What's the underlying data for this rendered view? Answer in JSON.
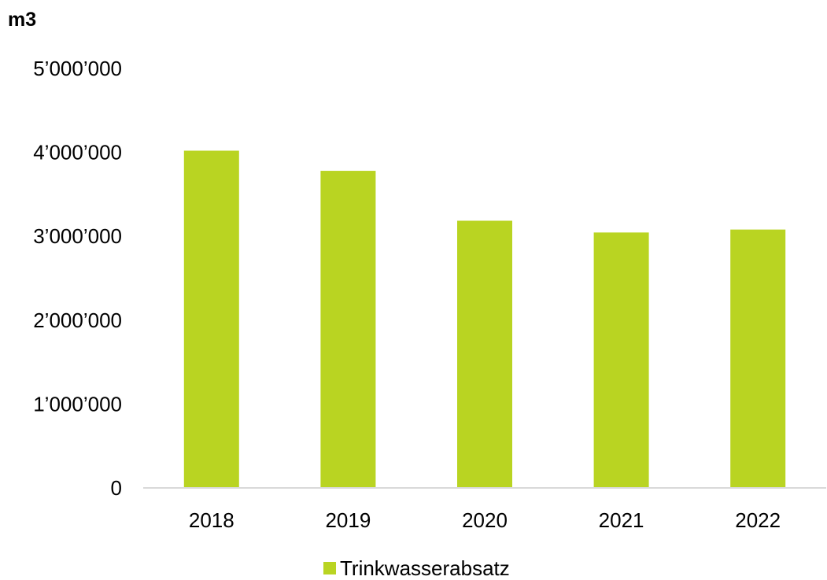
{
  "chart_data": {
    "type": "bar",
    "unit_label": "m3",
    "categories": [
      "2018",
      "2019",
      "2020",
      "2021",
      "2022"
    ],
    "series": [
      {
        "name": "Trinkwasserabsatz",
        "values": [
          4020000,
          3780000,
          3185000,
          3045000,
          3080000
        ]
      }
    ],
    "ylim": [
      0,
      5000000
    ],
    "y_ticks": [
      0,
      1000000,
      2000000,
      3000000,
      4000000,
      5000000
    ],
    "y_tick_labels": [
      "0",
      "1’000’000",
      "2’000’000",
      "3’000’000",
      "4’000’000",
      "5’000’000"
    ],
    "grid": false,
    "legend_position": "bottom",
    "colors": {
      "bar": "#b9d422",
      "axis": "#d9d9d9",
      "text": "#000000"
    }
  }
}
